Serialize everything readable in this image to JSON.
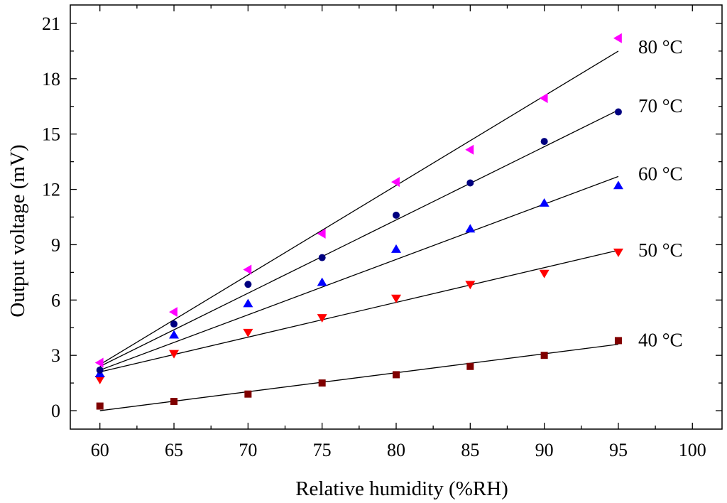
{
  "chart_data": {
    "type": "scatter",
    "xlabel": "Relative humidity (%RH)",
    "ylabel": "Output voltage (mV)",
    "xlim": [
      58,
      102
    ],
    "ylim": [
      -1,
      22
    ],
    "xticks": [
      60,
      65,
      70,
      75,
      80,
      85,
      90,
      95,
      100
    ],
    "yticks": [
      0,
      3,
      6,
      9,
      12,
      15,
      18,
      21
    ],
    "grid": false,
    "legend": "inline labels at right end of each series",
    "x": [
      60,
      65,
      70,
      75,
      80,
      85,
      90,
      95
    ],
    "series": [
      {
        "name": "40 °C",
        "marker": "square",
        "color": "#800000",
        "values": [
          0.25,
          0.5,
          0.9,
          1.5,
          1.95,
          2.4,
          3.0,
          3.8
        ],
        "fit": [
          0.0,
          3.6
        ]
      },
      {
        "name": "50 °C",
        "marker": "triangle-down",
        "color": "#ff0000",
        "values": [
          1.7,
          3.1,
          4.25,
          5.05,
          6.1,
          6.85,
          7.45,
          8.6
        ],
        "fit": [
          2.1,
          8.7
        ]
      },
      {
        "name": "60 °C",
        "marker": "triangle-up",
        "color": "#0000ff",
        "values": [
          2.0,
          4.1,
          5.8,
          6.95,
          8.75,
          9.85,
          11.25,
          12.2
        ],
        "fit": [
          2.2,
          12.7
        ]
      },
      {
        "name": "70 °C",
        "marker": "circle",
        "color": "#000080",
        "values": [
          2.2,
          4.7,
          6.85,
          8.3,
          10.6,
          12.35,
          14.6,
          16.2
        ],
        "fit": [
          2.4,
          16.3
        ]
      },
      {
        "name": "80 °C",
        "marker": "triangle-left",
        "color": "#ff00ff",
        "values": [
          2.6,
          5.35,
          7.65,
          9.6,
          12.4,
          14.15,
          16.95,
          20.2
        ],
        "fit": [
          2.5,
          19.5
        ]
      }
    ]
  }
}
